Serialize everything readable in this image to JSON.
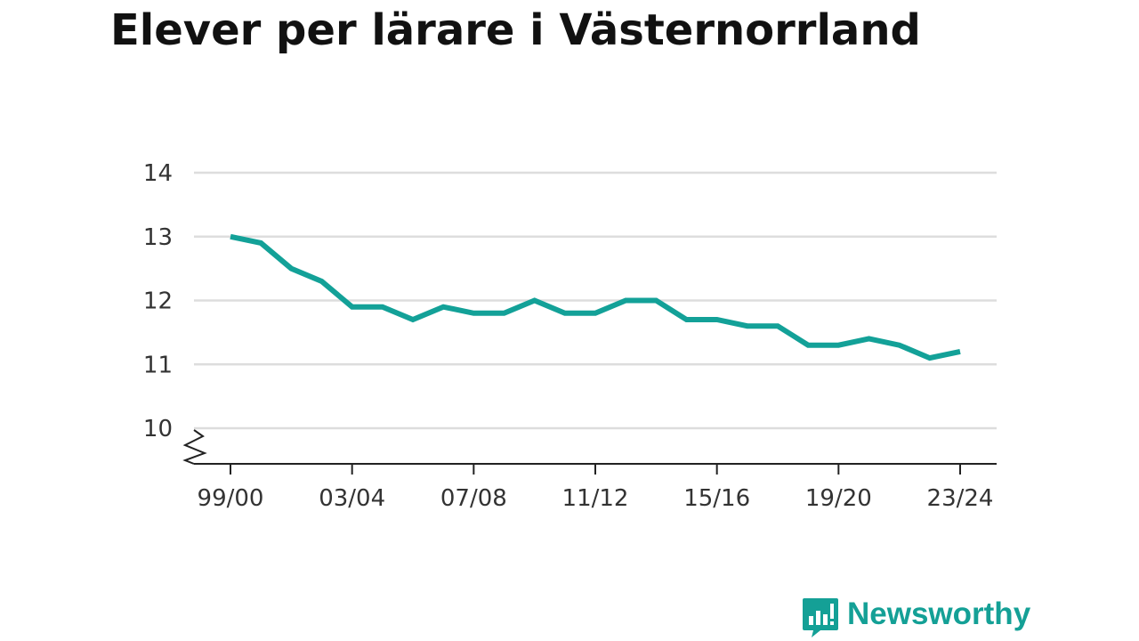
{
  "title": "Elever per lärare i Västernorrland",
  "brand": {
    "name": "Newsworthy",
    "color": "#14a096"
  },
  "chart_data": {
    "type": "line",
    "title": "Elever per lärare i Västernorrland",
    "xlabel": "",
    "ylabel": "",
    "x": [
      "99/00",
      "00/01",
      "01/02",
      "02/03",
      "03/04",
      "04/05",
      "05/06",
      "06/07",
      "07/08",
      "08/09",
      "09/10",
      "10/11",
      "11/12",
      "12/13",
      "13/14",
      "14/15",
      "15/16",
      "16/17",
      "17/18",
      "18/19",
      "19/20",
      "20/21",
      "21/22",
      "22/23",
      "23/24"
    ],
    "x_tick_labels": [
      "99/00",
      "03/04",
      "07/08",
      "11/12",
      "15/16",
      "19/20",
      "23/24"
    ],
    "series": [
      {
        "color": "#13a198",
        "values": [
          13.0,
          12.9,
          12.5,
          12.3,
          11.9,
          11.9,
          11.7,
          11.9,
          11.8,
          11.8,
          12.0,
          11.8,
          11.8,
          12.0,
          12.0,
          11.7,
          11.7,
          11.6,
          11.6,
          11.3,
          11.3,
          11.4,
          11.3,
          11.1,
          11.2
        ]
      }
    ],
    "ylim": [
      10,
      14
    ],
    "yticks": [
      10,
      11,
      12,
      13,
      14
    ],
    "y_axis_break": true,
    "grid": "horizontal",
    "legend": "none"
  }
}
